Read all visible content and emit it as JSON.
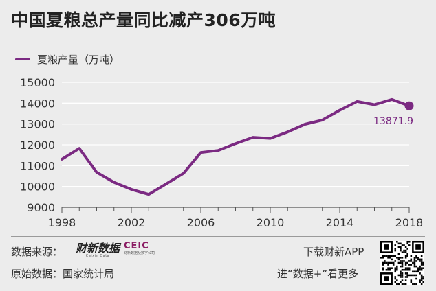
{
  "header": {
    "title": "中国夏粮总产量同比减产306万吨"
  },
  "legend": {
    "label": "夏粮产量（万吨）"
  },
  "footer": {
    "source_label": "数据来源：",
    "brand_caixin": "财新数据",
    "brand_caixin_sub": "Caixin Data",
    "brand_ceic": "CEIC",
    "brand_ceic_sub": "财新数据及数字公司",
    "origin_label": "原始数据：国家统计局",
    "download_label": "下载财新APP",
    "more_label": "进“数据+”看更多"
  },
  "colors": {
    "series": "#7b2a82",
    "background": "#ececec",
    "grid": "#ffffff"
  },
  "chart_data": {
    "type": "line",
    "title": "中国夏粮总产量同比减产306万吨",
    "xlabel": "",
    "ylabel": "",
    "xlim": [
      1998,
      2018
    ],
    "ylim": [
      9000,
      15000
    ],
    "x_ticks": [
      1998,
      2002,
      2006,
      2010,
      2014,
      2018
    ],
    "y_ticks": [
      9000,
      10000,
      11000,
      12000,
      13000,
      14000,
      15000
    ],
    "grid": true,
    "legend_position": "top-left",
    "series": [
      {
        "name": "夏粮产量（万吨）",
        "x": [
          1998,
          1999,
          2000,
          2001,
          2002,
          2003,
          2004,
          2005,
          2006,
          2007,
          2008,
          2009,
          2010,
          2011,
          2012,
          2013,
          2014,
          2015,
          2016,
          2017,
          2018
        ],
        "values": [
          11310,
          11830,
          10680,
          10200,
          9860,
          9620,
          10120,
          10630,
          11630,
          11730,
          12060,
          12360,
          12310,
          12620,
          12990,
          13190,
          13660,
          14080,
          13930,
          14180,
          13871.9
        ]
      }
    ],
    "annotation": {
      "x": 2018,
      "y": 13871.9,
      "text": "13871.9"
    }
  }
}
